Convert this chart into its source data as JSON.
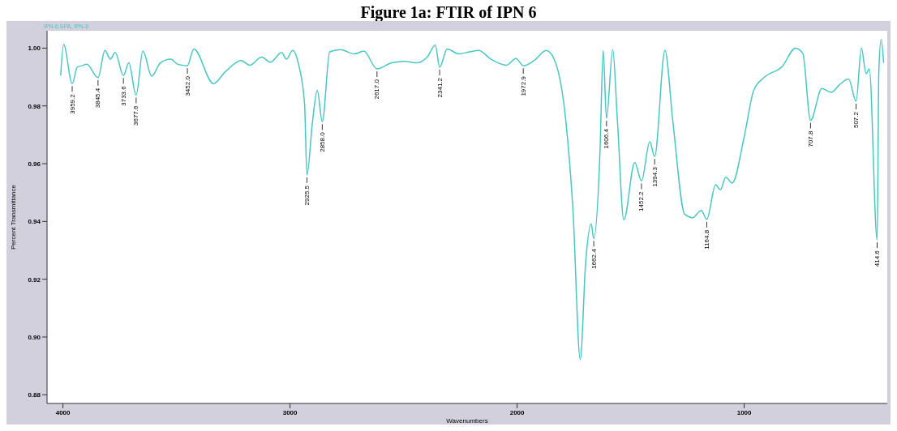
{
  "chart_data": {
    "type": "line",
    "title": "Figure 1a: FTIR of IPN 6",
    "xlabel": "Wavenumbers",
    "ylabel": "Percent Transmittance",
    "x": [
      4010,
      3997,
      3959.2,
      3937,
      3916,
      3895,
      3845.4,
      3815,
      3791,
      3770,
      3733.6,
      3710,
      3677.6,
      3648,
      3609,
      3571,
      3526,
      3494,
      3452.0,
      3424,
      3337,
      3285,
      3215,
      3177,
      3125,
      3086,
      3037,
      3016,
      2988,
      2964,
      2936,
      2925.5,
      2901,
      2880,
      2858.0,
      2825,
      2779,
      2716,
      2675,
      2617.0,
      2552,
      2493,
      2444,
      2396,
      2360,
      2341.2,
      2308,
      2256,
      2211,
      2169,
      2116,
      2047,
      2005,
      1972.9,
      1925,
      1872,
      1837,
      1785,
      1754,
      1722,
      1698,
      1674,
      1662.4,
      1635,
      1621,
      1606.4,
      1579,
      1558,
      1530,
      1482,
      1452.2,
      1416,
      1394.3,
      1349,
      1314,
      1262,
      1227,
      1189,
      1164.8,
      1126,
      1105,
      1081,
      1053,
      1000,
      958,
      913,
      833,
      774,
      742,
      707.8,
      658,
      617,
      582,
      540,
      507.2,
      484,
      463,
      449,
      414.6,
      407,
      397,
      386
    ],
    "series": [
      {
        "color": "#48c7c2",
        "values": [
          0.9905,
          1.0013,
          0.9877,
          0.9934,
          0.9939,
          0.9944,
          0.9898,
          0.9992,
          0.9962,
          0.9985,
          0.9905,
          0.9949,
          0.9837,
          0.999,
          0.9903,
          0.9949,
          0.9962,
          0.9944,
          0.9939,
          0.9997,
          0.9877,
          0.9918,
          0.9957,
          0.9941,
          0.9969,
          0.9951,
          0.9985,
          0.9962,
          0.9992,
          0.9949,
          0.9808,
          0.9561,
          0.9745,
          0.9854,
          0.9745,
          0.9987,
          0.9995,
          0.998,
          0.999,
          0.9928,
          0.9949,
          0.9954,
          0.9949,
          0.9969,
          1.001,
          0.9934,
          0.9997,
          0.998,
          0.9987,
          0.9992,
          0.9962,
          0.9941,
          0.9964,
          0.9939,
          0.9957,
          0.9992,
          0.9962,
          0.9745,
          0.9438,
          0.8922,
          0.9259,
          0.9392,
          0.9341,
          0.9642,
          0.9992,
          0.9757,
          0.9995,
          0.9745,
          0.9405,
          0.9604,
          0.954,
          0.9676,
          0.9625,
          0.9992,
          0.9745,
          0.9425,
          0.9413,
          0.9438,
          0.9407,
          0.9527,
          0.951,
          0.9553,
          0.9533,
          0.9693,
          0.9854,
          0.9898,
          0.9936,
          1.0,
          0.9982,
          0.975,
          0.986,
          0.9847,
          0.9872,
          0.9893,
          0.9816,
          1.0,
          0.9911,
          0.9928,
          0.9336,
          0.9923,
          1.003,
          0.9949
        ]
      }
    ],
    "xlim": [
      4070,
      370
    ],
    "xticks": [
      4000,
      3000,
      2000,
      1000
    ],
    "ylim": [
      0.877,
      1.006
    ],
    "yticks": [
      {
        "value": 0.88,
        "label": "0.88"
      },
      {
        "value": 0.9,
        "label": "0.90"
      },
      {
        "value": 0.92,
        "label": "0.92"
      },
      {
        "value": 0.94,
        "label": "0.94"
      },
      {
        "value": 0.96,
        "label": "0.96"
      },
      {
        "value": 0.98,
        "label": "0.98"
      },
      {
        "value": 1.0,
        "label": "1.00"
      }
    ],
    "grid": false,
    "legend": false,
    "marker": "none",
    "line_style": "solid",
    "annotations": [
      "IPN-6.SPA, IPN-6",
      {
        "text": "3959.2",
        "x": 3959.2,
        "y": 0.9877
      },
      {
        "text": "3845.4",
        "x": 3845.4,
        "y": 0.9898
      },
      {
        "text": "3733.6",
        "x": 3733.6,
        "y": 0.9905
      },
      {
        "text": "3677.6",
        "x": 3677.6,
        "y": 0.9837
      },
      {
        "text": "3452.0",
        "x": 3452.0,
        "y": 0.9939
      },
      {
        "text": "2925.5",
        "x": 2925.5,
        "y": 0.9561
      },
      {
        "text": "2858.0",
        "x": 2858.0,
        "y": 0.9745
      },
      {
        "text": "2617.0",
        "x": 2617.0,
        "y": 0.9928
      },
      {
        "text": "2341.2",
        "x": 2341.2,
        "y": 0.9934
      },
      {
        "text": "1972.9",
        "x": 1972.9,
        "y": 0.9939
      },
      {
        "text": "1662.4",
        "x": 1662.4,
        "y": 0.9341
      },
      {
        "text": "1606.4",
        "x": 1606.4,
        "y": 0.9757
      },
      {
        "text": "1452.2",
        "x": 1452.2,
        "y": 0.954
      },
      {
        "text": "1394.3",
        "x": 1394.3,
        "y": 0.9625
      },
      {
        "text": "1164.8",
        "x": 1164.8,
        "y": 0.9407
      },
      {
        "text": "707.8",
        "x": 707.8,
        "y": 0.975
      },
      {
        "text": "507.2",
        "x": 507.2,
        "y": 0.9816
      },
      {
        "text": "414.6",
        "x": 414.6,
        "y": 0.9336
      }
    ]
  }
}
